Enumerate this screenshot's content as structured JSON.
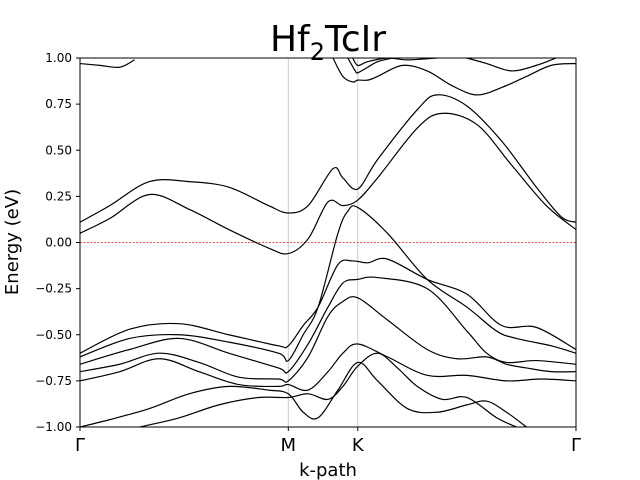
{
  "chart_data": {
    "type": "line",
    "title_main": "Hf",
    "title_sub": "2",
    "title_rest": "TcIr",
    "xlabel": "k-path",
    "ylabel": "Energy (eV)",
    "xlim": [
      0,
      1
    ],
    "ylim": [
      -1.0,
      1.0
    ],
    "yticks": [
      -1.0,
      -0.75,
      -0.5,
      -0.25,
      0.0,
      0.25,
      0.5,
      0.75,
      1.0
    ],
    "ytick_labels": [
      "−1.00",
      "−0.75",
      "−0.50",
      "−0.25",
      "0.00",
      "0.25",
      "0.50",
      "0.75",
      "1.00"
    ],
    "high_symmetry_points": [
      {
        "label": "Γ",
        "x": 0.0
      },
      {
        "label": "M",
        "x": 0.42
      },
      {
        "label": "K",
        "x": 0.56
      },
      {
        "label": "Γ",
        "x": 1.0
      }
    ],
    "fermi_level": 0.0,
    "fermi_color": "#e31a1c",
    "line_color": "#000000",
    "vline_color": "#cccccc",
    "series": [
      {
        "x": [
          0,
          0.06,
          0.14,
          0.22,
          0.3,
          0.38,
          0.42,
          0.46,
          0.51,
          0.53,
          0.56,
          0.6,
          0.68,
          0.72,
          0.78,
          0.85,
          0.92,
          0.97,
          1.0
        ],
        "y": [
          0.11,
          0.2,
          0.33,
          0.33,
          0.3,
          0.2,
          0.16,
          0.2,
          0.4,
          0.35,
          0.29,
          0.45,
          0.72,
          0.8,
          0.74,
          0.55,
          0.3,
          0.14,
          0.11
        ]
      },
      {
        "x": [
          0,
          0.06,
          0.14,
          0.22,
          0.3,
          0.38,
          0.42,
          0.46,
          0.5,
          0.53,
          0.56,
          0.6,
          0.68,
          0.73,
          0.8,
          0.87,
          0.94,
          1.0
        ],
        "y": [
          0.05,
          0.13,
          0.26,
          0.18,
          0.07,
          -0.03,
          -0.06,
          0.02,
          0.22,
          0.2,
          0.23,
          0.35,
          0.62,
          0.7,
          0.64,
          0.42,
          0.2,
          0.07
        ]
      },
      {
        "x": [
          0,
          0.1,
          0.2,
          0.3,
          0.4,
          0.42,
          0.45,
          0.48,
          0.52,
          0.54,
          0.56,
          0.62,
          0.7,
          0.78,
          0.84,
          0.88,
          0.95,
          1.0
        ],
        "y": [
          -0.62,
          -0.52,
          -0.5,
          -0.54,
          -0.6,
          -0.64,
          -0.5,
          -0.35,
          0.05,
          0.17,
          0.19,
          0.05,
          -0.2,
          -0.35,
          -0.48,
          -0.52,
          -0.56,
          -0.6
        ]
      },
      {
        "x": [
          0,
          0.1,
          0.2,
          0.3,
          0.4,
          0.42,
          0.45,
          0.48,
          0.52,
          0.55,
          0.58,
          0.62,
          0.7,
          0.78,
          0.85,
          0.92,
          1.0
        ],
        "y": [
          -0.6,
          -0.47,
          -0.44,
          -0.5,
          -0.56,
          -0.56,
          -0.45,
          -0.35,
          -0.12,
          -0.1,
          -0.11,
          -0.09,
          -0.2,
          -0.28,
          -0.45,
          -0.46,
          -0.58
        ]
      },
      {
        "x": [
          0,
          0.1,
          0.2,
          0.3,
          0.4,
          0.42,
          0.46,
          0.5,
          0.53,
          0.56,
          0.6,
          0.7,
          0.78,
          0.82,
          0.86,
          0.92,
          1.0
        ],
        "y": [
          -0.66,
          -0.58,
          -0.52,
          -0.6,
          -0.68,
          -0.7,
          -0.55,
          -0.35,
          -0.22,
          -0.2,
          -0.19,
          -0.25,
          -0.48,
          -0.6,
          -0.65,
          -0.64,
          -0.66
        ]
      },
      {
        "x": [
          0,
          0.08,
          0.16,
          0.24,
          0.32,
          0.4,
          0.42,
          0.46,
          0.5,
          0.53,
          0.56,
          0.62,
          0.7,
          0.76,
          0.82,
          0.86,
          0.9,
          0.95,
          1.0
        ],
        "y": [
          -0.7,
          -0.66,
          -0.6,
          -0.65,
          -0.73,
          -0.74,
          -0.75,
          -0.62,
          -0.4,
          -0.32,
          -0.3,
          -0.42,
          -0.58,
          -0.63,
          -0.62,
          -0.66,
          -0.68,
          -0.7,
          -0.7
        ]
      },
      {
        "x": [
          0,
          0.08,
          0.16,
          0.24,
          0.32,
          0.4,
          0.42,
          0.46,
          0.5,
          0.53,
          0.56,
          0.62,
          0.7,
          0.78,
          0.86,
          0.93,
          1.0
        ],
        "y": [
          -0.75,
          -0.7,
          -0.63,
          -0.7,
          -0.77,
          -0.78,
          -0.77,
          -0.8,
          -0.7,
          -0.6,
          -0.55,
          -0.62,
          -0.72,
          -0.72,
          -0.75,
          -0.74,
          -0.75
        ]
      },
      {
        "x": [
          0,
          0.06,
          0.14,
          0.22,
          0.3,
          0.38,
          0.42,
          0.45,
          0.48,
          0.52,
          0.56,
          0.6,
          0.66,
          0.72,
          0.78,
          0.82,
          0.86,
          0.9
        ],
        "y": [
          -1.0,
          -0.96,
          -0.9,
          -0.82,
          -0.78,
          -0.8,
          -0.82,
          -0.92,
          -0.95,
          -0.8,
          -0.65,
          -0.75,
          -0.9,
          -0.92,
          -0.88,
          -0.86,
          -0.92,
          -1.0
        ]
      },
      {
        "x": [
          0.12,
          0.2,
          0.28,
          0.36,
          0.42,
          0.46,
          0.5,
          0.53,
          0.56,
          0.6,
          0.64,
          0.68,
          0.73,
          0.78,
          0.84,
          0.88
        ],
        "y": [
          -1.0,
          -0.95,
          -0.88,
          -0.84,
          -0.84,
          -0.82,
          -0.85,
          -0.78,
          -0.67,
          -0.6,
          -0.68,
          -0.78,
          -0.85,
          -0.84,
          -0.95,
          -1.0
        ]
      },
      {
        "x": [
          0,
          0.04,
          0.08,
          0.11
        ],
        "y": [
          0.97,
          0.96,
          0.95,
          0.99
        ]
      },
      {
        "x": [
          0.51,
          0.53,
          0.55,
          0.56,
          0.58,
          0.6,
          0.65,
          0.7,
          0.75,
          0.8,
          0.85,
          0.9,
          0.95,
          1.0
        ],
        "y": [
          1.0,
          0.9,
          0.87,
          0.88,
          0.88,
          0.9,
          0.96,
          0.93,
          0.85,
          0.8,
          0.84,
          0.9,
          0.96,
          0.97
        ]
      },
      {
        "x": [
          0.54,
          0.555,
          0.56,
          0.58,
          0.6,
          0.63
        ],
        "y": [
          1.0,
          0.93,
          0.92,
          0.95,
          0.98,
          1.0
        ]
      },
      {
        "x": [
          0.55,
          0.56,
          0.58,
          0.62,
          0.66,
          0.72
        ],
        "y": [
          1.0,
          0.96,
          0.98,
          1.0,
          0.99,
          1.0
        ]
      },
      {
        "x": [
          0.78,
          0.82,
          0.87,
          0.92,
          0.96
        ],
        "y": [
          1.0,
          0.97,
          0.93,
          0.96,
          1.0
        ]
      }
    ]
  }
}
